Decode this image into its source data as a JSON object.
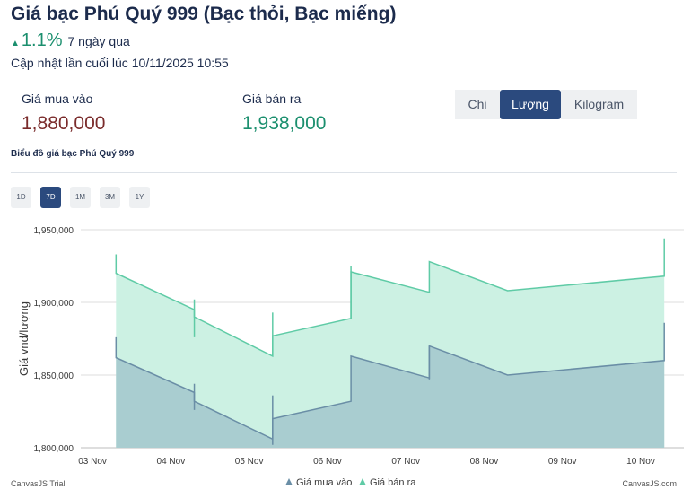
{
  "header": {
    "title": "Giá bạc Phú Quý 999 (Bạc thỏi, Bạc miếng)",
    "change_percent": "1.1%",
    "change_period": "7 ngày qua",
    "updated_label": "Cập nhật lần cuối lúc",
    "updated_time": "10/11/2025 10:55"
  },
  "prices": {
    "buy_label": "Giá mua vào",
    "buy_value": "1,880,000",
    "sell_label": "Giá bán ra",
    "sell_value": "1,938,000"
  },
  "unit_tabs": [
    {
      "label": "Chi",
      "active": false
    },
    {
      "label": "Lượng",
      "active": true
    },
    {
      "label": "Kilogram",
      "active": false
    }
  ],
  "chart_caption": "Biểu đồ giá bạc Phú Quý 999",
  "range_buttons": [
    {
      "label": "1D",
      "active": false
    },
    {
      "label": "7D",
      "active": true
    },
    {
      "label": "1M",
      "active": false
    },
    {
      "label": "3M",
      "active": false
    },
    {
      "label": "1Y",
      "active": false
    }
  ],
  "colors": {
    "buy_line": "#6a8ea6",
    "buy_fill": "#a9cdd0",
    "sell_line": "#5fcba6",
    "sell_fill": "#ccf1e3",
    "grid": "#dcdcdc"
  },
  "chart_data": {
    "type": "area",
    "ylabel": "Giá vnd/lượng",
    "xlabel": "",
    "ylim": [
      1800000,
      1950000
    ],
    "y_ticks": [
      1800000,
      1850000,
      1900000,
      1950000
    ],
    "y_tick_labels": [
      "1,800,000",
      "1,850,000",
      "1,900,000",
      "1,950,000"
    ],
    "x_range": [
      2.85,
      10.55
    ],
    "x_ticks": [
      3,
      4,
      5,
      6,
      7,
      8,
      9,
      10
    ],
    "x_tick_labels": [
      "03 Nov",
      "04 Nov",
      "05 Nov",
      "06 Nov",
      "07 Nov",
      "08 Nov",
      "09 Nov",
      "10 Nov"
    ],
    "legend_position": "bottom",
    "series": [
      {
        "name": "Giá mua vào",
        "points": [
          [
            3.3,
            1876000
          ],
          [
            3.3,
            1862000
          ],
          [
            4.3,
            1838000
          ],
          [
            4.3,
            1832000
          ],
          [
            5.3,
            1806000
          ],
          [
            5.3,
            1820000
          ],
          [
            6.3,
            1832000
          ],
          [
            6.3,
            1863000
          ],
          [
            7.3,
            1848000
          ],
          [
            7.3,
            1870000
          ],
          [
            8.3,
            1850000
          ],
          [
            10.3,
            1860000
          ],
          [
            10.3,
            1886000
          ]
        ]
      },
      {
        "name": "Giá bán ra",
        "points": [
          [
            3.3,
            1933000
          ],
          [
            3.3,
            1920000
          ],
          [
            4.3,
            1895000
          ],
          [
            4.3,
            1890000
          ],
          [
            5.3,
            1863000
          ],
          [
            5.3,
            1877000
          ],
          [
            6.3,
            1889000
          ],
          [
            6.3,
            1921000
          ],
          [
            7.3,
            1907000
          ],
          [
            7.3,
            1928000
          ],
          [
            8.3,
            1908000
          ],
          [
            10.3,
            1918000
          ],
          [
            10.3,
            1944000
          ]
        ]
      }
    ],
    "whiskers": {
      "Giá mua vào": [
        [
          4.3,
          1844000,
          1826000
        ],
        [
          5.3,
          1836000,
          1802000
        ],
        [
          7.3,
          1870000,
          1847000
        ]
      ],
      "Giá bán ra": [
        [
          4.3,
          1902000,
          1876000
        ],
        [
          5.3,
          1893000,
          1863000
        ],
        [
          6.3,
          1925000,
          1889000
        ]
      ]
    }
  },
  "credits": {
    "left": "CanvasJS Trial",
    "right": "CanvasJS.com"
  }
}
